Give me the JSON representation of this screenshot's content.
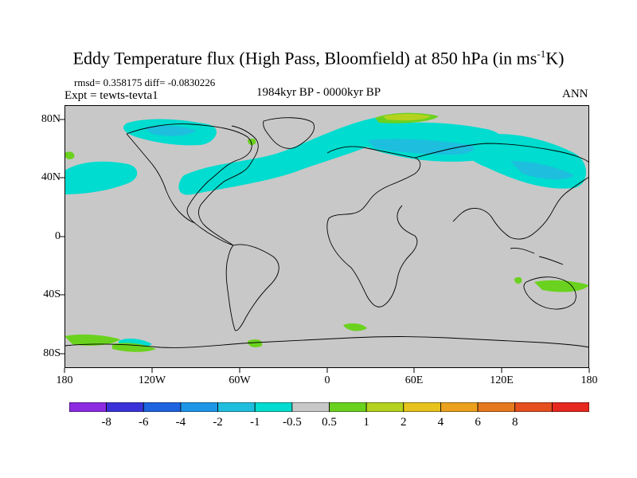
{
  "title": {
    "main": "Eddy Temperature flux (High Pass, Bloomfield) at 850 hPa (in ms",
    "sup": "-1",
    "end": "K)"
  },
  "stats": {
    "rmsd_label": "rmsd=",
    "rmsd": "0.358175",
    "diff_label": "diff=",
    "diff": "-0.0830226"
  },
  "expt": "Expt = tewts-tevta1",
  "period": "1984kyr BP - 0000kyr BP",
  "season": "ANN",
  "axes": {
    "y_ticks": [
      "80N",
      "40N",
      "0",
      "40S",
      "80S"
    ],
    "x_ticks": [
      "180",
      "120W",
      "60W",
      "0",
      "60E",
      "120E",
      "180"
    ]
  },
  "colorbar": {
    "colors": [
      "#8c2be2",
      "#3a32d8",
      "#1e64e0",
      "#1e96e8",
      "#1ebede",
      "#00dccf",
      "#c8c8c8",
      "#6ad21e",
      "#b4d21e",
      "#e6c31e",
      "#eba01e",
      "#e6781e",
      "#e6501e",
      "#e6281e"
    ],
    "labels": [
      "-8",
      "-6",
      "-4",
      "-2",
      "-1",
      "-0.5",
      "0.5",
      "1",
      "2",
      "4",
      "6",
      "8"
    ]
  },
  "map_colors": {
    "background": "#c8c8c8",
    "negative_light": "#00dccf",
    "negative_mid": "#1ebede",
    "positive_light": "#6ad21e",
    "positive_mid": "#b4d21e",
    "coast": "#000000"
  }
}
